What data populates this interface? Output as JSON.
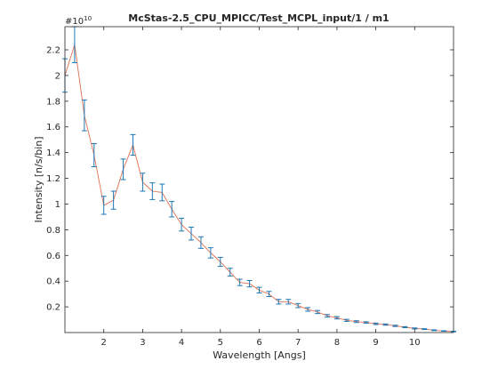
{
  "chart_data": {
    "type": "line",
    "title": "McStas-2.5_CPU_MPICC/Test_MCPL_input/1 / m1",
    "xlabel": "Wavelength [Angs]",
    "ylabel": "Intensity [n/s/bin]",
    "y_exponent_label": "#10",
    "y_exponent": "10",
    "xlim": [
      1.0,
      11.0
    ],
    "ylim": [
      0.0,
      2.38
    ],
    "x_ticks": [
      2,
      3,
      4,
      5,
      6,
      7,
      8,
      9,
      10
    ],
    "x_tick_labels": [
      "2",
      "3",
      "4",
      "5",
      "6",
      "7",
      "8",
      "9",
      "10"
    ],
    "y_ticks": [
      0.2,
      0.4,
      0.6,
      0.8,
      1.0,
      1.2,
      1.4,
      1.6,
      1.8,
      2.0,
      2.2
    ],
    "y_tick_labels": [
      "0.2",
      "0.4",
      "0.6",
      "0.8",
      "1",
      "1.2",
      "1.4",
      "1.6",
      "1.8",
      "2",
      "2.2"
    ],
    "grid": false,
    "line_color": "#e07050",
    "errorbar_color": "#1f77b4",
    "x": [
      1.0,
      1.25,
      1.5,
      1.75,
      2.0,
      2.25,
      2.5,
      2.75,
      3.0,
      3.25,
      3.5,
      3.75,
      4.0,
      4.25,
      4.5,
      4.75,
      5.0,
      5.25,
      5.5,
      5.75,
      6.0,
      6.25,
      6.5,
      6.75,
      7.0,
      7.25,
      7.5,
      7.75,
      8.0,
      8.25,
      8.5,
      8.75,
      9.0,
      9.25,
      9.5,
      9.75,
      10.0,
      10.25,
      10.5,
      10.75,
      11.0
    ],
    "y": [
      2.0,
      2.24,
      1.69,
      1.38,
      0.99,
      1.03,
      1.27,
      1.46,
      1.17,
      1.1,
      1.09,
      0.96,
      0.84,
      0.77,
      0.7,
      0.62,
      0.55,
      0.47,
      0.39,
      0.38,
      0.33,
      0.3,
      0.24,
      0.24,
      0.21,
      0.18,
      0.16,
      0.13,
      0.115,
      0.095,
      0.085,
      0.078,
      0.068,
      0.062,
      0.052,
      0.042,
      0.032,
      0.027,
      0.018,
      0.012,
      0.008
    ],
    "err": [
      0.13,
      0.14,
      0.12,
      0.09,
      0.07,
      0.07,
      0.08,
      0.08,
      0.07,
      0.065,
      0.065,
      0.06,
      0.05,
      0.05,
      0.045,
      0.04,
      0.035,
      0.03,
      0.025,
      0.025,
      0.022,
      0.02,
      0.018,
      0.018,
      0.016,
      0.014,
      0.012,
      0.01,
      0.009,
      0.008,
      0.007,
      0.006,
      0.006,
      0.005,
      0.005,
      0.004,
      0.004,
      0.003,
      0.003,
      0.002,
      0.002
    ]
  }
}
